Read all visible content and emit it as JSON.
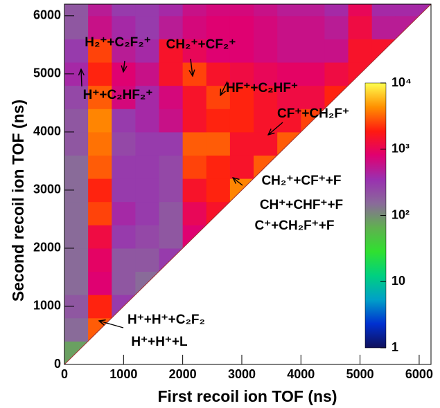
{
  "chart_data": {
    "type": "heatmap",
    "xlabel": "First recoil ion TOF (ns)",
    "ylabel": "Second recoil ion TOF (ns)",
    "xlim": [
      0,
      6200
    ],
    "ylim": [
      0,
      6200
    ],
    "xticks": [
      0,
      1000,
      2000,
      3000,
      4000,
      5000,
      6000
    ],
    "yticks": [
      0,
      1000,
      2000,
      3000,
      4000,
      5000,
      6000
    ],
    "xbins": [
      0,
      400,
      800,
      1200,
      1600,
      2000,
      2400,
      2800,
      3200,
      3600,
      4000,
      4400,
      4800,
      5200,
      5600,
      6000,
      6200
    ],
    "ybins": [
      0,
      400,
      800,
      1200,
      1600,
      2000,
      2400,
      2800,
      3200,
      3600,
      4000,
      4400,
      4800,
      5200,
      5600,
      6000,
      6200
    ],
    "z": [
      [
        80,
        null,
        null,
        null,
        null,
        null,
        null,
        null,
        null,
        null,
        null,
        null,
        null,
        null,
        null,
        null
      ],
      [
        150,
        3000,
        null,
        null,
        null,
        null,
        null,
        null,
        null,
        null,
        null,
        null,
        null,
        null,
        null,
        null
      ],
      [
        200,
        2000,
        300,
        null,
        null,
        null,
        null,
        null,
        null,
        null,
        null,
        null,
        null,
        null,
        null,
        null
      ],
      [
        150,
        800,
        200,
        150,
        null,
        null,
        null,
        null,
        null,
        null,
        null,
        null,
        null,
        null,
        null,
        null
      ],
      [
        150,
        900,
        200,
        200,
        300,
        null,
        null,
        null,
        null,
        null,
        null,
        null,
        null,
        null,
        null,
        null
      ],
      [
        150,
        1200,
        300,
        250,
        200,
        800,
        null,
        null,
        null,
        null,
        null,
        null,
        null,
        null,
        null,
        null
      ],
      [
        150,
        2500,
        400,
        300,
        200,
        1000,
        1500,
        null,
        null,
        null,
        null,
        null,
        null,
        null,
        null,
        null
      ],
      [
        150,
        2000,
        300,
        300,
        250,
        1500,
        2000,
        4000,
        null,
        null,
        null,
        null,
        null,
        null,
        null,
        null
      ],
      [
        150,
        3000,
        300,
        300,
        250,
        2500,
        2000,
        1500,
        3000,
        null,
        null,
        null,
        null,
        null,
        null,
        null
      ],
      [
        200,
        3500,
        250,
        300,
        300,
        3000,
        3000,
        1500,
        1500,
        3000,
        null,
        null,
        null,
        null,
        null,
        null
      ],
      [
        200,
        4000,
        300,
        400,
        600,
        1500,
        2000,
        2000,
        1500,
        1500,
        2500,
        null,
        null,
        null,
        null,
        null
      ],
      [
        250,
        3000,
        700,
        400,
        700,
        1500,
        2500,
        2000,
        1500,
        1200,
        1200,
        2000,
        null,
        null,
        null,
        null
      ],
      [
        400,
        2000,
        800,
        600,
        1500,
        2500,
        1500,
        1200,
        1000,
        900,
        900,
        1200,
        1500,
        null,
        null,
        null
      ],
      [
        300,
        2500,
        500,
        400,
        1500,
        1000,
        800,
        800,
        700,
        600,
        600,
        600,
        1500,
        1500,
        null,
        null
      ],
      [
        200,
        600,
        400,
        300,
        500,
        700,
        800,
        800,
        700,
        600,
        600,
        500,
        1200,
        500,
        500,
        null
      ],
      [
        200,
        500,
        300,
        300,
        400,
        600,
        700,
        700,
        600,
        500,
        500,
        400,
        1000,
        400,
        400,
        400
      ]
    ],
    "zlim": [
      1,
      10000
    ],
    "zlog": true,
    "zticks": [
      1,
      10,
      {
        "value": 100,
        "label": "10²"
      },
      {
        "value": 1000,
        "label": "10³"
      },
      {
        "value": 10000,
        "label": "10⁴"
      }
    ],
    "colorscale": [
      "#10105a",
      "#0030d0",
      "#00a0c8",
      "#00d080",
      "#30e030",
      "#60b050",
      "#8a6a9a",
      "#9a30b0",
      "#e00070",
      "#ff1a10",
      "#ff9000",
      "#ffff50"
    ],
    "annotations": [
      "H₂⁺+C₂F₂⁺",
      "H⁺+C₂HF₂⁺",
      "CH₂⁺+CF₂⁺",
      "HF⁺+C₂HF⁺",
      "CF⁺+CH₂F⁺",
      "CH₂⁺+CF⁺+F",
      "CH⁺+CHF⁺+F",
      "C⁺+CH₂F⁺+F",
      "H⁺+H⁺+C₂F₂",
      "H⁺+H⁺+L"
    ]
  }
}
